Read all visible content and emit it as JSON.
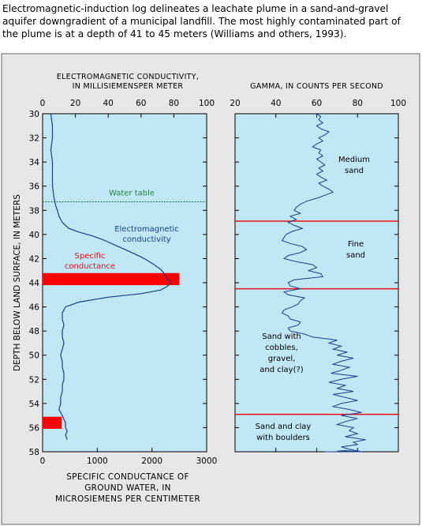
{
  "caption": "Electromagnetic-induction log delineates a leachate plume in a sand-and-gravel aquifer downgradient of a municipal landfill. The most highly contaminated part of the plume is at a depth of 41 to 45 meters (Williams and others, 1993).",
  "colors": {
    "frame_background": "#e7e7e7",
    "plot_background": "#bfe8f4",
    "curve": "#1b3e86",
    "conductance_bar": "#ff0000",
    "formation_line": "#e8101a",
    "water_table": "#2a7d4a"
  },
  "chart_data": [
    {
      "type": "line",
      "title": "ELECTROMAGNETIC CONDUCTIVITY,\nIN MILLISIEMENSPER METER",
      "top_axis": {
        "label_lines": [
          "ELECTROMAGNETIC CONDUCTIVITY,",
          "IN MILLISIEMENSPER METER"
        ],
        "range": [
          0,
          100
        ],
        "ticks": [
          "0",
          "20",
          "40",
          "60",
          "80",
          "100"
        ]
      },
      "bottom_axis": {
        "label_lines": [
          "SPECIFIC CONDUCTANCE OF",
          "GROUND WATER, IN",
          "MICROSIEMENS PER CENTIMETER"
        ],
        "range": [
          0,
          3000
        ],
        "ticks": [
          "0",
          "1000",
          "2000",
          "3000"
        ]
      },
      "y_axis": {
        "label": "DEPTH BELOW LAND SURFACE, IN METERS",
        "range": [
          30,
          58
        ],
        "inverted": true,
        "ticks": [
          "30",
          "32",
          "34",
          "36",
          "38",
          "40",
          "42",
          "44",
          "46",
          "48",
          "50",
          "52",
          "54",
          "56",
          "58"
        ]
      },
      "water_table": {
        "label": "Water table",
        "depth": 37.3
      },
      "annotations": [
        "Electromagnetic",
        "conductivity",
        "Specific",
        "conductance"
      ],
      "specific_conductance": [
        {
          "depth_top": 43.2,
          "depth_bottom": 44.2,
          "value": 2500
        },
        {
          "depth_top": 55.1,
          "depth_bottom": 56.1,
          "value": 350
        }
      ],
      "series": [
        {
          "name": "Electromagnetic conductivity",
          "x": [
            5,
            6,
            6,
            5,
            6,
            6,
            6,
            6.5,
            7,
            7.5,
            8,
            9,
            10,
            12,
            16,
            22,
            30,
            38,
            46,
            56,
            62,
            68,
            72,
            74,
            75,
            77,
            78,
            76,
            72,
            60,
            40,
            22,
            14,
            12,
            12,
            13,
            12,
            12,
            13,
            12,
            11,
            12,
            12,
            13,
            13,
            12,
            12,
            11,
            11,
            10,
            12,
            13,
            14,
            14,
            15,
            14,
            15
          ],
          "y": [
            30,
            31,
            32,
            33,
            34,
            35,
            36,
            36.5,
            37,
            37.3,
            37.6,
            38,
            38.5,
            39,
            39.5,
            39.8,
            40.1,
            40.5,
            41,
            41.6,
            42,
            42.5,
            42.9,
            43.2,
            43.5,
            43.8,
            44,
            44.3,
            44.6,
            44.9,
            45.2,
            45.6,
            46,
            46.5,
            47,
            47.5,
            48,
            48.5,
            49,
            49.5,
            50,
            50.5,
            51,
            51.5,
            52,
            52.5,
            53,
            53.5,
            54,
            54.5,
            55,
            55.3,
            55.6,
            56,
            56.3,
            56.6,
            57
          ]
        }
      ]
    },
    {
      "type": "line",
      "title": "GAMMA, IN COUNTS PER SECOND",
      "top_axis": {
        "label_lines": [
          "GAMMA, IN COUNTS PER SECOND"
        ],
        "range": [
          20,
          100
        ],
        "ticks": [
          "20",
          "40",
          "60",
          "80",
          "100"
        ]
      },
      "y_axis": {
        "range": [
          30,
          58
        ],
        "inverted": true
      },
      "units": [
        {
          "label_lines": [
            "Medium",
            "sand"
          ],
          "depth_top": 30,
          "depth_bottom": 38.9
        },
        {
          "label_lines": [
            "Fine",
            "sand"
          ],
          "depth_top": 38.9,
          "depth_bottom": 44.5
        },
        {
          "label_lines": [
            "Sand with",
            "cobbles,",
            "gravel,",
            "and clay(?)"
          ],
          "depth_top": 44.5,
          "depth_bottom": 54.9
        },
        {
          "label_lines": [
            "Sand and clay",
            "with boulders"
          ],
          "depth_top": 54.9,
          "depth_bottom": 58
        }
      ],
      "series": [
        {
          "name": "Gamma",
          "x": [
            60,
            62,
            61,
            63,
            60,
            62,
            66,
            64,
            61,
            63,
            60,
            58,
            62,
            61,
            63,
            60,
            62,
            64,
            61,
            63,
            60,
            62,
            65,
            61,
            63,
            66,
            68,
            64,
            60,
            55,
            52,
            50,
            49,
            52,
            47,
            50,
            46,
            49,
            53,
            48,
            45,
            44,
            43,
            47,
            53,
            55,
            52,
            46,
            44,
            50,
            58,
            60,
            56,
            62,
            63,
            49,
            46,
            47,
            52,
            44,
            46,
            54,
            52,
            51,
            48,
            44,
            43,
            46,
            47,
            52,
            51,
            46,
            47,
            54,
            58,
            70,
            66,
            72,
            68,
            75,
            70,
            78,
            72,
            68,
            76,
            72,
            67,
            80,
            72,
            66,
            74,
            70,
            78,
            68,
            74,
            80,
            72,
            68,
            76,
            82,
            72,
            80,
            74,
            70,
            78,
            76,
            80,
            74,
            84,
            78,
            80,
            72,
            76,
            82,
            74,
            70,
            78,
            80,
            66,
            64
          ],
          "y": [
            30,
            30.25,
            30.5,
            30.75,
            31,
            31.25,
            31.5,
            31.75,
            32,
            32.25,
            32.5,
            32.75,
            33,
            33.25,
            33.5,
            33.75,
            34,
            34.25,
            34.5,
            34.75,
            35,
            35.25,
            35.5,
            35.75,
            36,
            36.25,
            36.5,
            36.75,
            37,
            37.25,
            37.5,
            37.75,
            38,
            38.25,
            38.5,
            38.75,
            39,
            39.25,
            39.5,
            39.75,
            40,
            40.25,
            40.5,
            40.75,
            41,
            41.25,
            41.5,
            41.75,
            42,
            42.25,
            42.5,
            42.75,
            43,
            43.25,
            43.5,
            43.75,
            44,
            44.25,
            44.5,
            44.75,
            45,
            45.25,
            45.5,
            45.75,
            46,
            46.25,
            46.5,
            46.75,
            47,
            47.25,
            47.5,
            47.75,
            48,
            48.25,
            48.5,
            48.75,
            49,
            49.25,
            49.5,
            49.75,
            50,
            50.25,
            50.5,
            50.75,
            51,
            51.25,
            51.5,
            51.75,
            52,
            52.25,
            52.5,
            52.75,
            53,
            53.25,
            53.5,
            53.75,
            54,
            54.25,
            54.5,
            54.75,
            55,
            55.25,
            55.5,
            55.75,
            56,
            56.25,
            56.5,
            56.75,
            57,
            57.2,
            57.4,
            57.6,
            57.8,
            58,
            57.9,
            57.95,
            58,
            58,
            58,
            58
          ]
        }
      ]
    }
  ]
}
